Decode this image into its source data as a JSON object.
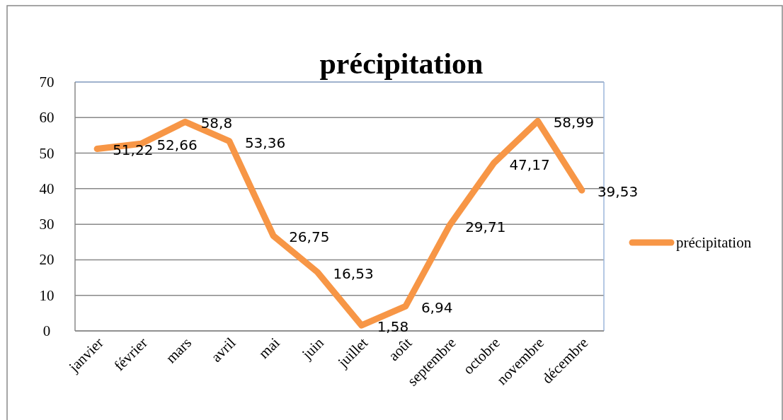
{
  "chart_data": {
    "type": "line",
    "title": "précipitation",
    "categories": [
      "janvier",
      "février",
      "mars",
      "avril",
      "mai",
      "juin",
      "juillet",
      "août",
      "septembre",
      "octobre",
      "novembre",
      "décembre"
    ],
    "series": [
      {
        "name": "précipitation",
        "color": "#f79646",
        "values": [
          51.22,
          52.66,
          58.8,
          53.36,
          26.75,
          16.53,
          1.58,
          6.94,
          29.71,
          47.17,
          58.99,
          39.53
        ],
        "value_labels": [
          "51,22",
          "52,66",
          "58,8",
          "53,36",
          "26,75",
          "16,53",
          "1,58",
          "6,94",
          "29,71",
          "47,17",
          "58,99",
          "39,53"
        ]
      }
    ],
    "ylim": [
      0,
      70
    ],
    "yticks": [
      0,
      10,
      20,
      30,
      40,
      50,
      60,
      70
    ],
    "grid": "y",
    "legend": "right",
    "marker": "none",
    "line_style": "solid"
  }
}
